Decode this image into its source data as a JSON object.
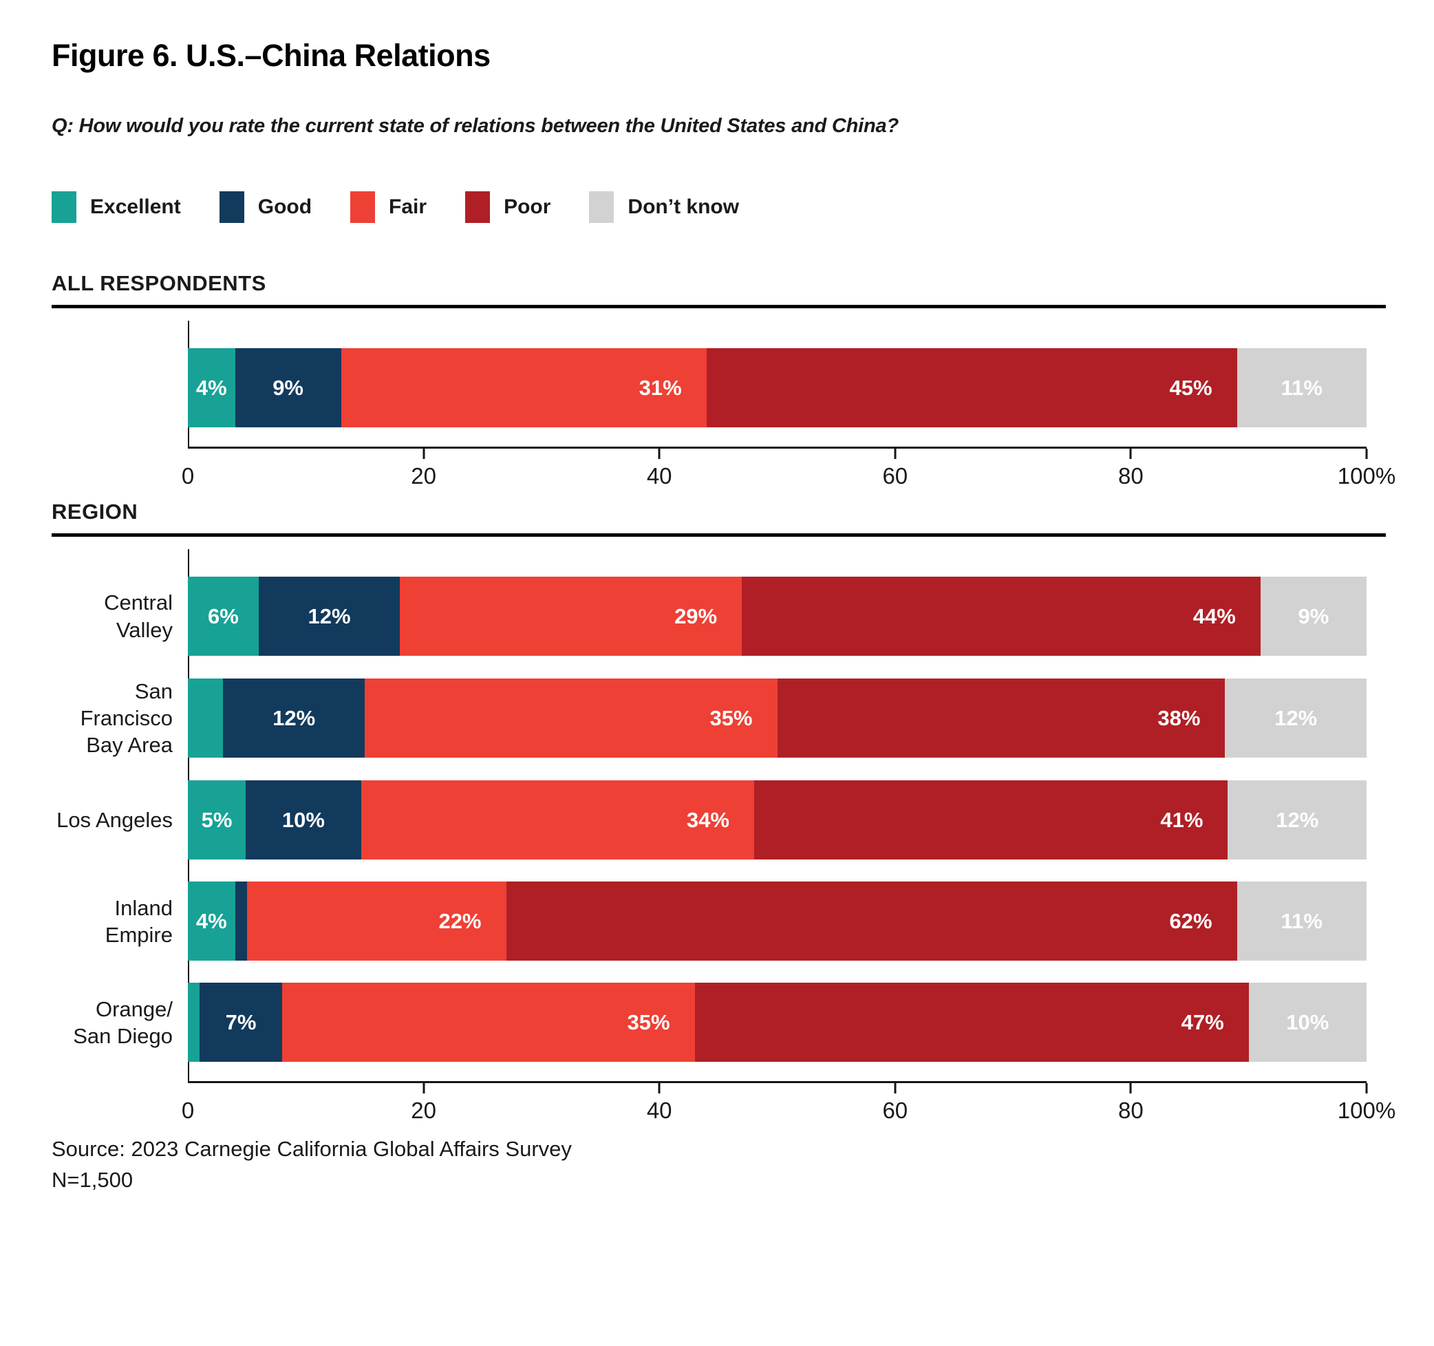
{
  "page": {
    "title": "Figure 6. U.S.–China Relations",
    "question": "Q: How would you rate the current state of relations between the United States and China?",
    "source": "Source: 2023 Carnegie California Global Affairs Survey",
    "n": "N=1,500"
  },
  "chart_data": {
    "type": "bar",
    "orientation": "horizontal",
    "stacked": true,
    "unit": "percent",
    "xlim": [
      0,
      100
    ],
    "x_ticks": [
      0,
      20,
      40,
      60,
      80,
      100
    ],
    "x_tick_labels": [
      "0",
      "20",
      "40",
      "60",
      "80",
      "100%"
    ],
    "legend_position": "top",
    "series": [
      {
        "name": "Excellent",
        "color": "#17A295"
      },
      {
        "name": "Good",
        "color": "#123A5C"
      },
      {
        "name": "Fair",
        "color": "#EE4035"
      },
      {
        "name": "Poor",
        "color": "#B01F26"
      },
      {
        "name": "Don’t know",
        "color": "#D2D2D2"
      }
    ],
    "groups": [
      {
        "heading": "ALL RESPONDENTS",
        "rows": [
          {
            "label": "",
            "label_lines": [],
            "values": [
              4,
              9,
              31,
              45,
              11
            ]
          }
        ]
      },
      {
        "heading": "REGION",
        "rows": [
          {
            "label": "Central Valley",
            "label_lines": [
              "Central Valley"
            ],
            "values": [
              6,
              12,
              29,
              44,
              9
            ]
          },
          {
            "label": "San Francisco Bay Area",
            "label_lines": [
              "San Francisco",
              "Bay Area"
            ],
            "values": [
              3,
              12,
              35,
              38,
              12
            ]
          },
          {
            "label": "Los Angeles",
            "label_lines": [
              "Los Angeles"
            ],
            "values": [
              5,
              10,
              34,
              41,
              12
            ]
          },
          {
            "label": "Inland Empire",
            "label_lines": [
              "Inland Empire"
            ],
            "values": [
              4,
              1,
              22,
              62,
              11
            ]
          },
          {
            "label": "Orange/San Diego",
            "label_lines": [
              "Orange/",
              "San Diego"
            ],
            "values": [
              1,
              7,
              35,
              47,
              10
            ]
          }
        ]
      }
    ]
  }
}
